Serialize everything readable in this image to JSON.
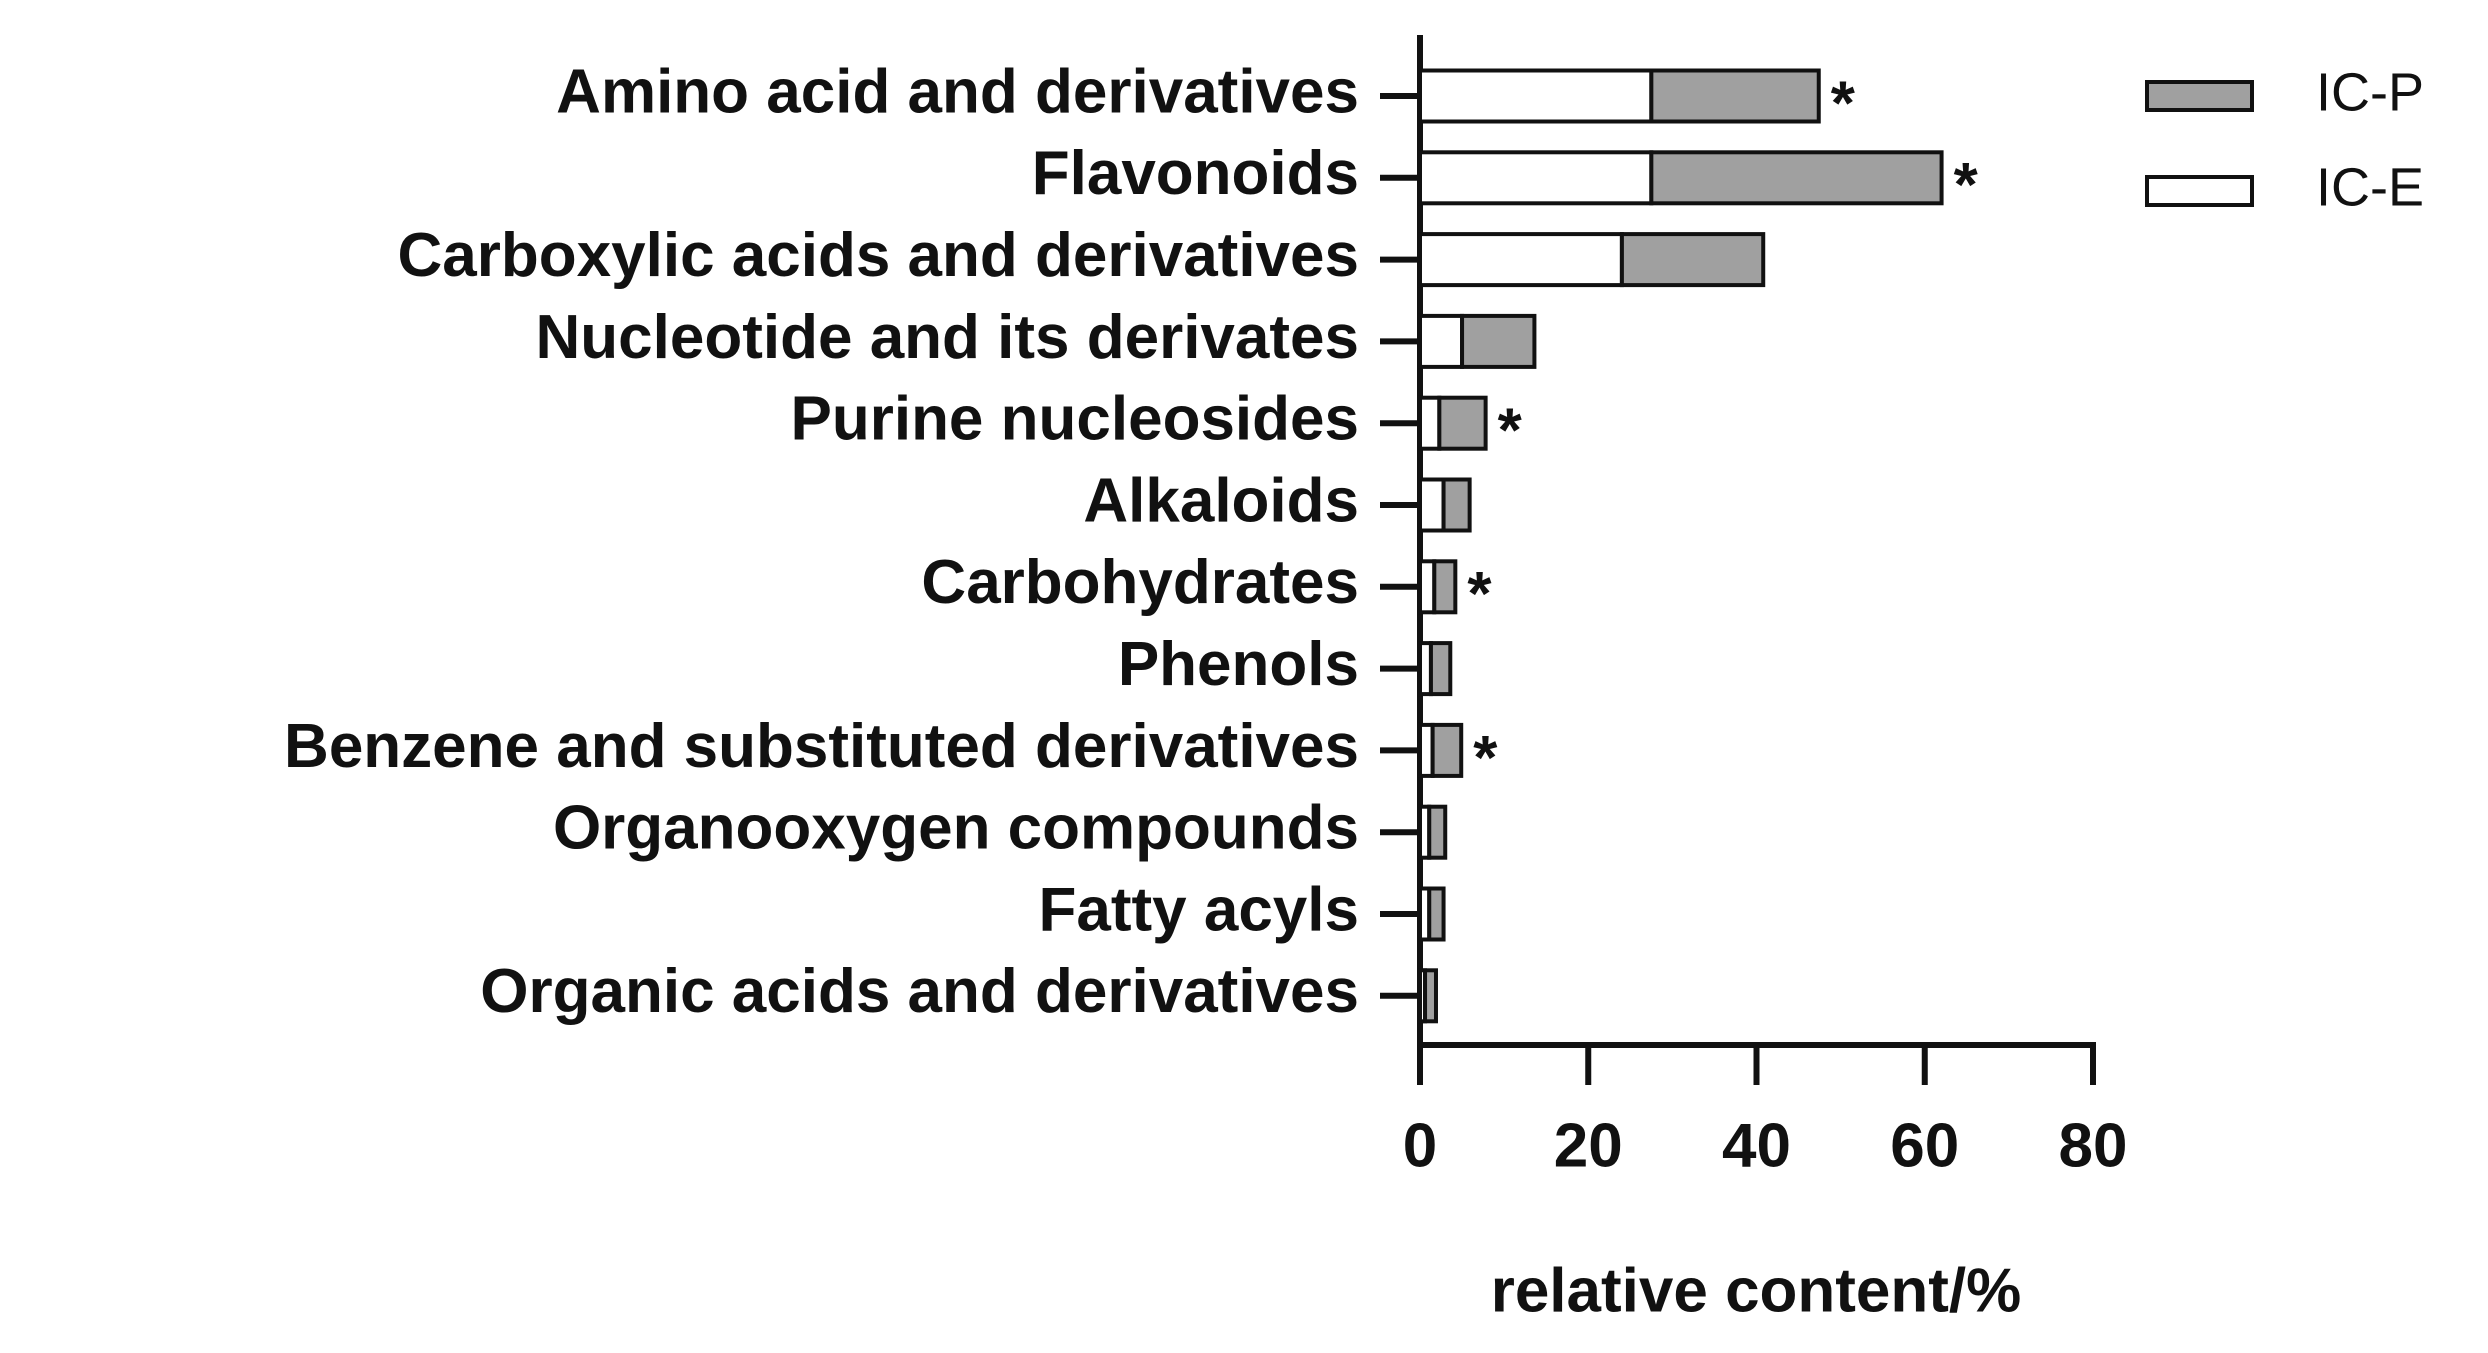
{
  "chart_data": {
    "type": "stacked-barh",
    "xlabel": "relative content/%",
    "categories": [
      "Amino acid and derivatives",
      "Flavonoids",
      "Carboxylic acids and derivatives",
      "Nucleotide and its derivates",
      "Purine nucleosides",
      "Alkaloids",
      "Carbohydrates",
      "Phenols",
      "Benzene and substituted derivatives",
      "Organooxygen compounds",
      "Fatty acyls",
      "Organic acids and derivatives"
    ],
    "series": [
      {
        "name": "IC-E",
        "color": "#ffffff",
        "values": [
          27.5,
          27.5,
          24,
          5,
          2.3,
          2.8,
          1.7,
          1.3,
          1.5,
          1.1,
          1.1,
          0.6
        ]
      },
      {
        "name": "IC-P",
        "color": "#a0a0a0",
        "values": [
          19.9,
          34.5,
          16.8,
          8.6,
          5.5,
          3.1,
          2.5,
          2.3,
          3.4,
          1.9,
          1.7,
          1.3
        ]
      }
    ],
    "significance": [
      "*",
      "*",
      null,
      null,
      "*",
      null,
      "*",
      null,
      "*",
      null,
      null,
      null
    ],
    "xlim": [
      0,
      80
    ],
    "xticks": [
      0,
      20,
      40,
      60,
      80
    ],
    "legend": "top-right"
  }
}
